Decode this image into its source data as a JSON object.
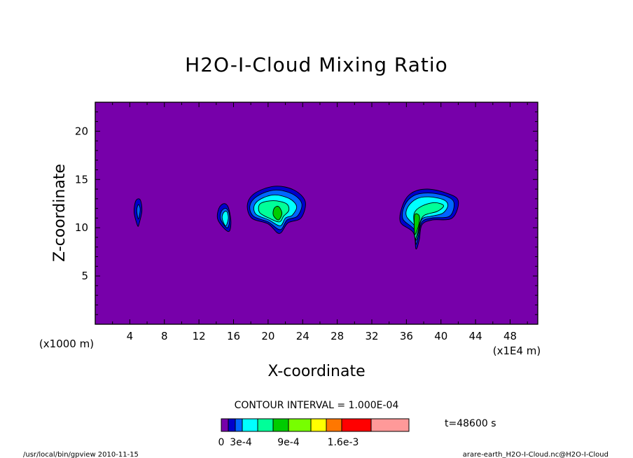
{
  "chart_data": {
    "type": "heatmap",
    "title": "H2O-I-Cloud Mixing Ratio",
    "xlabel": "X-coordinate",
    "ylabel": "Z-coordinate",
    "x_range": [
      0,
      51.2
    ],
    "y_range": [
      0,
      23
    ],
    "x_ticks": [
      4,
      8,
      12,
      16,
      20,
      24,
      28,
      32,
      36,
      40,
      44,
      48
    ],
    "y_ticks": [
      5,
      10,
      15,
      20
    ],
    "x_tick_labels": [
      "4",
      "8",
      "12",
      "16",
      "20",
      "24",
      "28",
      "32",
      "36",
      "40",
      "44",
      "48"
    ],
    "y_tick_labels": [
      "5",
      "10",
      "15",
      "20"
    ],
    "x_unit_label": "(x1E4 m)",
    "y_unit_label": "(x1000 m)",
    "contour_interval_text": "CONTOUR INTERVAL = 1.000E-04",
    "time_label": "t=48600 s",
    "background_color": "#7700aa",
    "colorbar": {
      "colors": [
        "#7700aa",
        "#0000cc",
        "#0066ff",
        "#00ffff",
        "#00ff99",
        "#00cc00",
        "#77ff00",
        "#ffff00",
        "#ff7700",
        "#ff0000",
        "#ff9999"
      ],
      "labels": [
        "0",
        "3e-4",
        "9e-4",
        "1.6e-3"
      ]
    },
    "cloud_levels_colors": [
      "#0000cc",
      "#0066ff",
      "#00ffff",
      "#00ff99",
      "#00cc00"
    ],
    "clouds": [
      {
        "levels": [
          [
            [
              4.9,
              10.2
            ],
            [
              4.5,
              11.6
            ],
            [
              4.7,
              12.8
            ],
            [
              5.2,
              12.9
            ],
            [
              5.4,
              11.8
            ],
            [
              5.1,
              10.5
            ]
          ],
          [
            [
              5.0,
              10.9
            ],
            [
              4.8,
              11.8
            ],
            [
              5.0,
              12.4
            ],
            [
              5.2,
              11.9
            ]
          ]
        ]
      },
      {
        "levels": [
          [
            [
              15.4,
              9.6
            ],
            [
              14.2,
              10.8
            ],
            [
              14.3,
              12.0
            ],
            [
              14.9,
              12.5
            ],
            [
              15.4,
              12.1
            ],
            [
              15.7,
              10.6
            ]
          ],
          [
            [
              15.2,
              10.0
            ],
            [
              14.5,
              10.9
            ],
            [
              14.6,
              11.7
            ],
            [
              15.1,
              12.0
            ],
            [
              15.5,
              11.5
            ],
            [
              15.5,
              10.4
            ]
          ],
          [
            [
              15.1,
              10.2
            ],
            [
              14.7,
              10.9
            ],
            [
              14.8,
              11.5
            ],
            [
              15.2,
              11.7
            ],
            [
              15.4,
              11.0
            ]
          ]
        ]
      },
      {
        "levels": [
          [
            [
              21.3,
              9.4
            ],
            [
              20.0,
              10.4
            ],
            [
              18.1,
              11.0
            ],
            [
              17.6,
              12.4
            ],
            [
              18.5,
              13.6
            ],
            [
              20.8,
              14.3
            ],
            [
              23.0,
              13.9
            ],
            [
              24.3,
              12.7
            ],
            [
              23.8,
              11.0
            ],
            [
              22.3,
              10.5
            ]
          ],
          [
            [
              21.4,
              9.8
            ],
            [
              20.0,
              10.6
            ],
            [
              18.3,
              11.2
            ],
            [
              17.9,
              12.3
            ],
            [
              18.8,
              13.3
            ],
            [
              20.8,
              13.9
            ],
            [
              22.8,
              13.5
            ],
            [
              23.9,
              12.5
            ],
            [
              23.4,
              11.2
            ],
            [
              22.2,
              10.8
            ]
          ],
          [
            [
              21.4,
              10.2
            ],
            [
              20.1,
              10.8
            ],
            [
              18.6,
              11.4
            ],
            [
              18.4,
              12.3
            ],
            [
              19.2,
              13.0
            ],
            [
              20.8,
              13.4
            ],
            [
              22.5,
              13.0
            ],
            [
              23.3,
              12.2
            ],
            [
              22.8,
              11.3
            ],
            [
              22.0,
              11.0
            ]
          ],
          [
            [
              21.3,
              10.6
            ],
            [
              20.1,
              11.0
            ],
            [
              19.0,
              11.6
            ],
            [
              19.1,
              12.5
            ],
            [
              20.6,
              12.8
            ],
            [
              22.1,
              12.5
            ],
            [
              22.4,
              11.8
            ],
            [
              21.8,
              11.2
            ]
          ],
          [
            [
              21.2,
              10.8
            ],
            [
              20.6,
              11.3
            ],
            [
              20.7,
              12.0
            ],
            [
              21.2,
              12.2
            ],
            [
              21.6,
              11.5
            ]
          ]
        ]
      },
      {
        "levels": [
          [
            [
              37.1,
              7.8
            ],
            [
              36.8,
              9.5
            ],
            [
              35.3,
              10.6
            ],
            [
              35.6,
              12.4
            ],
            [
              36.6,
              13.6
            ],
            [
              38.4,
              14.0
            ],
            [
              40.6,
              13.6
            ],
            [
              42.0,
              12.8
            ],
            [
              41.3,
              11.0
            ],
            [
              39.0,
              10.8
            ],
            [
              37.8,
              10.3
            ],
            [
              37.5,
              8.8
            ]
          ],
          [
            [
              37.1,
              8.3
            ],
            [
              36.9,
              9.8
            ],
            [
              35.6,
              10.9
            ],
            [
              35.8,
              12.3
            ],
            [
              36.8,
              13.3
            ],
            [
              38.5,
              13.6
            ],
            [
              40.5,
              13.3
            ],
            [
              41.5,
              12.6
            ],
            [
              41.0,
              11.2
            ],
            [
              38.9,
              11.0
            ],
            [
              37.8,
              10.6
            ],
            [
              37.4,
              9.2
            ]
          ],
          [
            [
              37.1,
              8.7
            ],
            [
              37.0,
              10.1
            ],
            [
              36.0,
              11.2
            ],
            [
              36.2,
              12.2
            ],
            [
              37.2,
              13.0
            ],
            [
              38.6,
              13.2
            ],
            [
              40.3,
              12.9
            ],
            [
              40.8,
              12.3
            ],
            [
              40.2,
              11.5
            ],
            [
              38.9,
              11.2
            ],
            [
              37.8,
              10.9
            ],
            [
              37.4,
              9.6
            ]
          ],
          [
            [
              37.0,
              8.9
            ],
            [
              36.9,
              10.3
            ],
            [
              36.9,
              11.5
            ],
            [
              37.7,
              12.2
            ],
            [
              39.2,
              12.6
            ],
            [
              40.3,
              12.3
            ],
            [
              39.6,
              11.7
            ],
            [
              38.1,
              11.3
            ],
            [
              37.6,
              10.6
            ],
            [
              37.3,
              9.5
            ]
          ],
          [
            [
              37.0,
              9.3
            ],
            [
              36.9,
              10.4
            ],
            [
              37.0,
              11.4
            ],
            [
              37.5,
              11.2
            ],
            [
              37.4,
              10.2
            ]
          ]
        ]
      }
    ],
    "grid": false,
    "legend": "bottom-center"
  },
  "footer": {
    "left": "/usr/local/bin/gpview  2010-11-15",
    "right": "arare-earth_H2O-I-Cloud.nc@H2O-I-Cloud"
  }
}
